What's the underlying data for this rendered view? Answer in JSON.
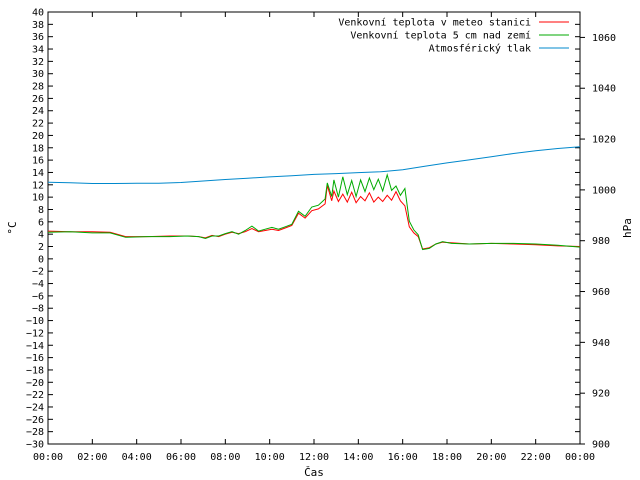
{
  "chart_data": {
    "type": "line",
    "title": "",
    "xlabel": "Čas",
    "ylabel": "°C",
    "y2label": "hPa",
    "xlim": [
      0,
      24
    ],
    "ylim": [
      -30,
      40
    ],
    "y2lim": [
      900,
      1070
    ],
    "x_tick_labels": [
      "00:00",
      "02:00",
      "04:00",
      "06:00",
      "08:00",
      "10:00",
      "12:00",
      "14:00",
      "16:00",
      "18:00",
      "20:00",
      "22:00",
      "00:00"
    ],
    "y_tick_step": 2,
    "y2_ticks": [
      900,
      920,
      940,
      960,
      980,
      1000,
      1020,
      1040,
      1060
    ],
    "grid": false,
    "legend_position": "top-right",
    "series": [
      {
        "name": "Venkovní teplota v meteo stanici",
        "axis": "left",
        "color": "#ff0000",
        "x": [
          0,
          1,
          2,
          2.8,
          3.5,
          4.5,
          5.5,
          6.3,
          6.8,
          7.1,
          7.4,
          7.7,
          8.0,
          8.3,
          8.6,
          8.9,
          9.2,
          9.5,
          9.8,
          10.1,
          10.4,
          10.7,
          11.0,
          11.3,
          11.6,
          11.9,
          12.2,
          12.5,
          12.6,
          12.8,
          12.9,
          13.1,
          13.3,
          13.5,
          13.7,
          13.9,
          14.1,
          14.3,
          14.5,
          14.7,
          14.9,
          15.1,
          15.3,
          15.5,
          15.7,
          15.9,
          16.1,
          16.3,
          16.5,
          16.7,
          16.9,
          17.2,
          17.5,
          17.8,
          18.2,
          19,
          20,
          21,
          22,
          23,
          24
        ],
        "y": [
          4.5,
          4.4,
          4.4,
          4.3,
          3.6,
          3.6,
          3.7,
          3.7,
          3.6,
          3.4,
          3.8,
          3.6,
          4.0,
          4.3,
          4.1,
          4.4,
          4.9,
          4.4,
          4.6,
          4.8,
          4.6,
          5.0,
          5.4,
          7.4,
          6.6,
          7.8,
          8.1,
          8.9,
          11.9,
          9.4,
          11.0,
          9.3,
          10.5,
          9.2,
          10.8,
          9.1,
          10.1,
          9.4,
          10.7,
          9.2,
          10.0,
          9.3,
          10.3,
          9.5,
          10.9,
          9.4,
          8.6,
          5.2,
          4.2,
          3.6,
          1.6,
          1.8,
          2.4,
          2.7,
          2.6,
          2.4,
          2.5,
          2.4,
          2.3,
          2.1,
          2.0
        ]
      },
      {
        "name": "Venkovní teplota 5 cm nad zemí",
        "axis": "left",
        "color": "#00aa00",
        "x": [
          0,
          1,
          2,
          2.8,
          3.5,
          4.5,
          5.5,
          6.3,
          6.8,
          7.1,
          7.4,
          7.7,
          8.0,
          8.3,
          8.6,
          8.9,
          9.2,
          9.5,
          9.8,
          10.1,
          10.4,
          10.7,
          11.0,
          11.3,
          11.6,
          11.9,
          12.2,
          12.5,
          12.6,
          12.8,
          12.9,
          13.1,
          13.3,
          13.5,
          13.7,
          13.9,
          14.1,
          14.3,
          14.5,
          14.7,
          14.9,
          15.1,
          15.3,
          15.5,
          15.7,
          15.9,
          16.1,
          16.3,
          16.5,
          16.7,
          16.9,
          17.2,
          17.5,
          17.8,
          18.2,
          19,
          20,
          21,
          22,
          23,
          24
        ],
        "y": [
          4.3,
          4.4,
          4.2,
          4.2,
          3.5,
          3.6,
          3.6,
          3.7,
          3.6,
          3.3,
          3.7,
          3.7,
          4.1,
          4.4,
          4.0,
          4.6,
          5.3,
          4.5,
          4.8,
          5.1,
          4.8,
          5.2,
          5.6,
          7.7,
          6.9,
          8.4,
          8.7,
          9.7,
          12.3,
          10.1,
          12.8,
          10.0,
          13.3,
          10.4,
          12.7,
          10.1,
          12.8,
          10.9,
          13.1,
          11.2,
          12.9,
          11.0,
          13.6,
          11.1,
          11.8,
          10.3,
          11.4,
          6.1,
          4.7,
          3.9,
          1.5,
          1.7,
          2.4,
          2.8,
          2.5,
          2.4,
          2.5,
          2.5,
          2.4,
          2.2,
          1.9
        ]
      },
      {
        "name": "Atmosférický tlak",
        "axis": "right",
        "color": "#0088cc",
        "x": [
          0,
          1,
          2,
          3,
          4,
          5,
          6,
          7,
          8,
          9,
          10,
          11,
          12,
          13,
          14,
          15,
          16,
          17,
          18,
          19,
          20,
          21,
          22,
          23,
          24
        ],
        "y": [
          1003.0,
          1002.8,
          1002.5,
          1002.5,
          1002.6,
          1002.6,
          1002.9,
          1003.5,
          1004.1,
          1004.6,
          1005.1,
          1005.6,
          1006.1,
          1006.4,
          1006.8,
          1007.1,
          1007.9,
          1009.3,
          1010.6,
          1011.8,
          1013.0,
          1014.3,
          1015.4,
          1016.3,
          1017.0
        ]
      }
    ]
  }
}
